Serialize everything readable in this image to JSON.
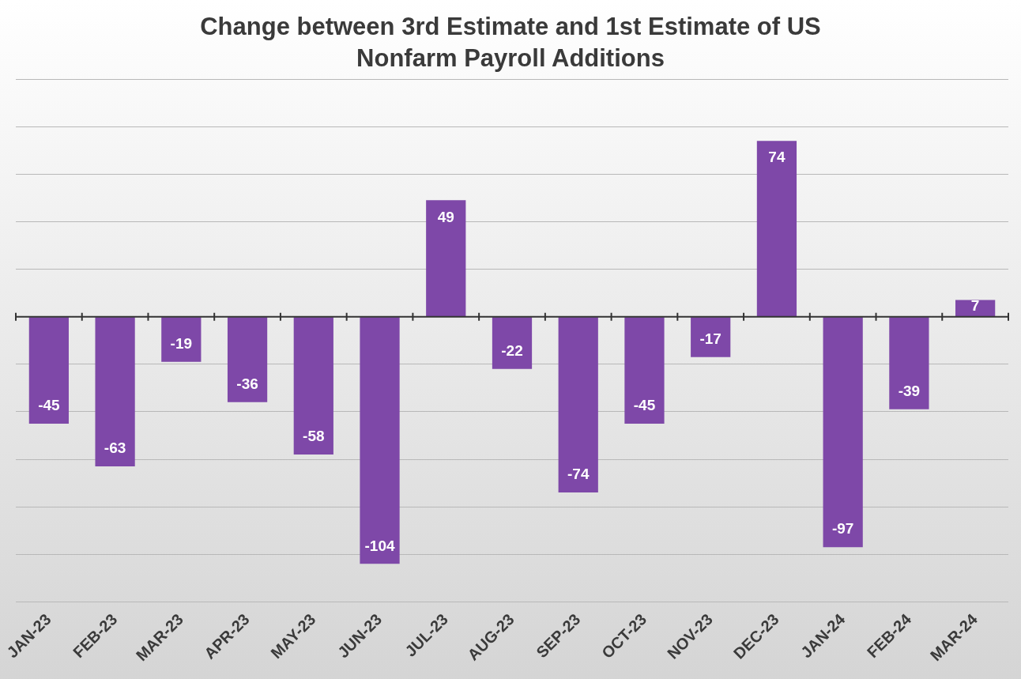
{
  "chart_data": {
    "type": "bar",
    "title": "Change between 3rd Estimate and 1st Estimate of US Nonfarm Payroll Additions",
    "categories": [
      "JAN-23",
      "FEB-23",
      "MAR-23",
      "APR-23",
      "MAY-23",
      "JUN-23",
      "JUL-23",
      "AUG-23",
      "SEP-23",
      "OCT-23",
      "NOV-23",
      "DEC-23",
      "JAN-24",
      "FEB-24",
      "MAR-24"
    ],
    "values": [
      -45,
      -63,
      -19,
      -36,
      -58,
      -104,
      49,
      -22,
      -74,
      -45,
      -17,
      74,
      -97,
      -39,
      7
    ],
    "color": "#7e48a8",
    "ylim": [
      -120,
      100
    ],
    "yticks": [
      {
        "value": -120,
        "label": null
      },
      {
        "value": -100,
        "label": null
      },
      {
        "value": -80,
        "label": null
      },
      {
        "value": -60,
        "label": null
      },
      {
        "value": -40,
        "label": null
      },
      {
        "value": -20,
        "label": null
      },
      {
        "value": 0,
        "label": null
      },
      {
        "value": 20,
        "label": null
      },
      {
        "value": 40,
        "label": null
      },
      {
        "value": 60,
        "label": null
      },
      {
        "value": 80,
        "label": null
      },
      {
        "value": 100,
        "label": null
      }
    ],
    "tick_labels": "x",
    "grid": "y",
    "legend": false,
    "data_labels": true
  }
}
